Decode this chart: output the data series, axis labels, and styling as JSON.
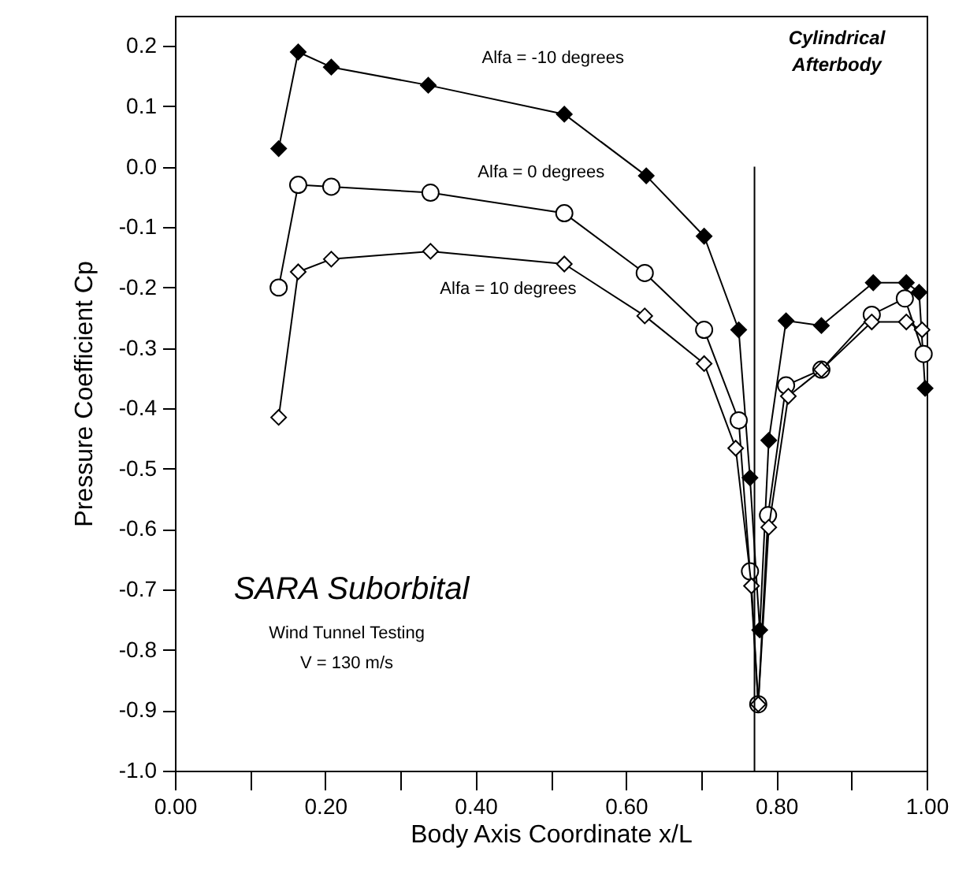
{
  "chart_data": {
    "type": "line",
    "xlabel": "Body Axis Coordinate  x/L",
    "ylabel": "Pressure Coefficient  Cp",
    "xlim": [
      0,
      1
    ],
    "ylim": [
      -1,
      0.25
    ],
    "xticks": [
      {
        "value": 0,
        "label": "0.00"
      },
      {
        "value": 0.1,
        "label": null
      },
      {
        "value": 0.2,
        "label": "0.20"
      },
      {
        "value": 0.3,
        "label": null
      },
      {
        "value": 0.4,
        "label": "0.40"
      },
      {
        "value": 0.5,
        "label": null
      },
      {
        "value": 0.6,
        "label": "0.60"
      },
      {
        "value": 0.7,
        "label": null
      },
      {
        "value": 0.8,
        "label": "0.80"
      },
      {
        "value": 0.9,
        "label": null
      },
      {
        "value": 1,
        "label": "1.00"
      }
    ],
    "yticks": [
      0.2,
      0.1,
      {
        "value": 0,
        "label": "0.0"
      },
      -0.1,
      -0.2,
      -0.3,
      -0.4,
      -0.5,
      -0.6,
      -0.7,
      -0.8,
      -0.9,
      {
        "value": -1,
        "label": "-1.0"
      }
    ],
    "grid": false,
    "line_style": "solid",
    "series": [
      {
        "name": "Alfa = -10 degrees",
        "color": "#000000",
        "marker": "diamond",
        "x": [
          0.138,
          0.164,
          0.208,
          0.337,
          0.518,
          0.627,
          0.704,
          0.75,
          0.765,
          0.778,
          0.79,
          0.813,
          0.86,
          0.929,
          0.973,
          0.99,
          0.998
        ],
        "values": [
          0.03,
          0.19,
          0.165,
          0.135,
          0.087,
          -0.015,
          -0.115,
          -0.27,
          -0.515,
          -0.767,
          -0.453,
          -0.255,
          -0.263,
          -0.192,
          -0.192,
          -0.208,
          -0.367
        ]
      },
      {
        "name": "Alfa = 0 degrees",
        "color": "#000000",
        "marker": "circle",
        "x": [
          0.138,
          0.164,
          0.208,
          0.34,
          0.518,
          0.625,
          0.704,
          0.75,
          0.765,
          0.776,
          0.789,
          0.813,
          0.86,
          0.927,
          0.971,
          0.996
        ],
        "values": [
          -0.2,
          -0.03,
          -0.033,
          -0.043,
          -0.077,
          -0.176,
          -0.27,
          -0.42,
          -0.67,
          -0.89,
          -0.577,
          -0.362,
          -0.336,
          -0.245,
          -0.218,
          -0.31
        ]
      },
      {
        "name": "Alfa = 10 degrees",
        "color": "#000000",
        "marker": "diamond",
        "x": [
          0.138,
          0.164,
          0.208,
          0.34,
          0.518,
          0.625,
          0.704,
          0.746,
          0.767,
          0.776,
          0.79,
          0.816,
          0.86,
          0.927,
          0.973,
          0.994
        ],
        "values": [
          -0.415,
          -0.174,
          -0.153,
          -0.14,
          -0.161,
          -0.247,
          -0.326,
          -0.466,
          -0.694,
          -0.89,
          -0.597,
          -0.38,
          -0.336,
          -0.257,
          -0.257,
          -0.27
        ]
      },
      {
        "color": "#000000",
        "marker": "none",
        "x": [
          0.771,
          0.771
        ],
        "values": [
          0,
          -1
        ]
      }
    ],
    "annotations": [
      "Cylindrical Afterbody",
      "SARA Suborbital",
      "Wind Tunnel Testing",
      "V = 130 m/s"
    ]
  }
}
